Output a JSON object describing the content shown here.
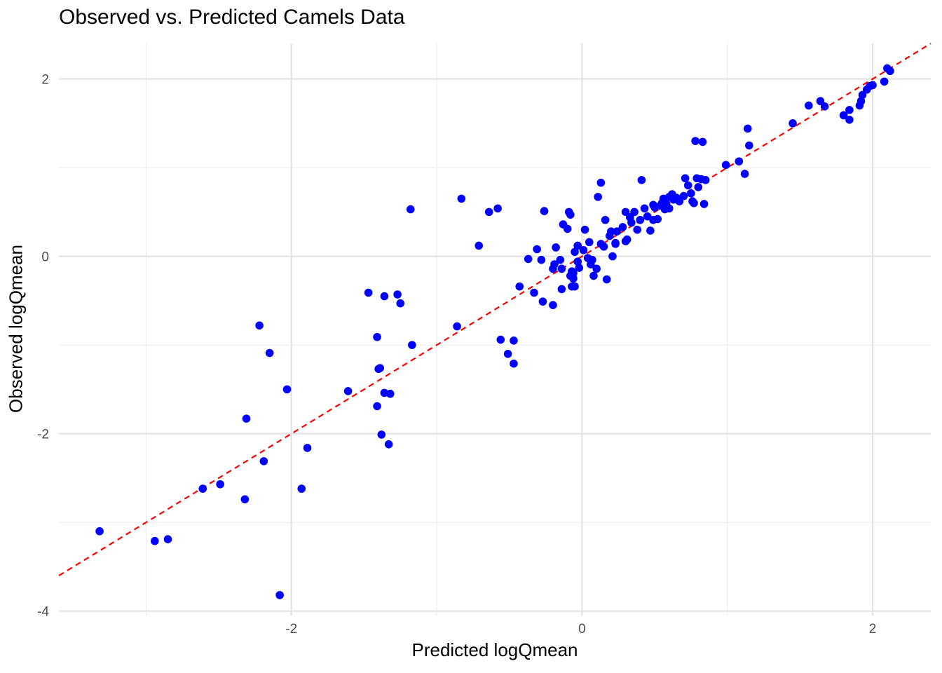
{
  "chart_data": {
    "type": "scatter",
    "title": "Observed vs. Predicted Camels Data",
    "xlabel": "Predicted logQmean",
    "ylabel": "Observed logQmean",
    "xlim": [
      -3.6,
      2.4
    ],
    "ylim": [
      -4.05,
      2.4
    ],
    "x_ticks": [
      -2,
      0,
      2
    ],
    "x_tick_labels": [
      "-2",
      "0",
      "2"
    ],
    "y_ticks": [
      -4,
      -2,
      0,
      2
    ],
    "y_tick_labels": [
      "-4",
      "-2",
      "0",
      "2"
    ],
    "grid": true,
    "legend": "none",
    "point_color": "#0000ff",
    "line_color": "#ff0000",
    "reference_line": {
      "type": "identity",
      "style": "dashed",
      "slope": 1,
      "intercept": 0
    },
    "series": [
      {
        "x": [
          -3.32,
          -2.94,
          -2.85,
          -2.61,
          -2.49,
          -2.31,
          -2.32,
          -2.22,
          -2.19,
          -2.15,
          -2.08,
          -2.03,
          -1.93,
          -1.89,
          -1.61,
          -1.47,
          -1.41,
          -1.4,
          -1.39,
          -1.41,
          -1.38,
          -1.36,
          -1.33,
          -1.36,
          -1.32,
          -1.27,
          -1.25,
          -1.18,
          -1.17,
          -0.86,
          -0.83,
          -0.71,
          -0.64,
          -0.58,
          -0.56,
          -0.51,
          -0.47,
          -0.47,
          -0.43,
          -0.37,
          -0.33,
          -0.31,
          -0.28,
          -0.26,
          -0.27,
          -0.2,
          -0.19,
          -0.2,
          -0.18,
          -0.15,
          -0.14,
          -0.13,
          -0.14,
          -0.1,
          -0.09,
          -0.07,
          -0.08,
          -0.07,
          -0.08,
          -0.06,
          -0.06,
          -0.05,
          -0.05,
          -0.03,
          -0.02,
          -0.03,
          0.01,
          0.02,
          0.04,
          0.05,
          0.06,
          0.07,
          0.08,
          0.1,
          0.11,
          0.13,
          0.13,
          0.15,
          0.16,
          0.17,
          0.19,
          0.2,
          0.21,
          0.23,
          0.23,
          0.24,
          0.28,
          0.3,
          0.3,
          0.31,
          0.33,
          0.34,
          0.36,
          0.38,
          0.4,
          0.41,
          0.43,
          0.45,
          0.47,
          0.49,
          0.49,
          0.5,
          0.52,
          0.54,
          0.55,
          0.56,
          0.57,
          0.58,
          0.6,
          0.6,
          0.62,
          0.63,
          0.65,
          0.67,
          0.7,
          0.71,
          0.73,
          0.75,
          0.76,
          0.77,
          0.78,
          0.79,
          0.8,
          0.82,
          0.84,
          0.85,
          0.83,
          0.99,
          1.08,
          1.12,
          1.14,
          1.15,
          1.45,
          1.56,
          1.64,
          1.67,
          1.8,
          1.84,
          1.84,
          1.91,
          1.92,
          1.93,
          1.96,
          1.98,
          2.0,
          2.08,
          2.1,
          2.12
        ],
        "y": [
          -3.1,
          -3.21,
          -3.19,
          -2.62,
          -2.57,
          -1.83,
          -2.74,
          -0.78,
          -2.31,
          -1.09,
          -3.82,
          -1.5,
          -2.62,
          -2.16,
          -1.52,
          -0.41,
          -1.69,
          -1.27,
          -1.26,
          -0.91,
          -2.01,
          -1.54,
          -2.12,
          -0.45,
          -1.55,
          -0.43,
          -0.53,
          0.53,
          -1.0,
          -0.79,
          0.65,
          0.12,
          0.5,
          0.54,
          -0.94,
          -1.1,
          -0.95,
          -1.21,
          -0.34,
          -0.03,
          -0.41,
          0.08,
          -0.04,
          0.51,
          -0.51,
          -0.55,
          -0.09,
          -0.14,
          0.1,
          -0.04,
          -0.37,
          0.36,
          -0.14,
          0.31,
          0.5,
          -0.34,
          0.47,
          -0.17,
          -0.22,
          -0.25,
          -0.19,
          0.05,
          -0.34,
          0.12,
          -0.13,
          -0.06,
          0.07,
          0.3,
          -0.02,
          0.16,
          -0.09,
          -0.04,
          -0.22,
          -0.14,
          0.67,
          0.14,
          0.83,
          0.11,
          0.41,
          -0.26,
          0.23,
          0.28,
          0.0,
          0.15,
          0.14,
          0.28,
          0.33,
          0.5,
          0.17,
          0.19,
          0.44,
          0.38,
          0.5,
          0.3,
          0.41,
          0.86,
          0.54,
          0.45,
          0.29,
          0.58,
          0.41,
          0.55,
          0.42,
          0.57,
          0.6,
          0.65,
          0.53,
          0.59,
          0.54,
          0.67,
          0.7,
          0.64,
          0.66,
          0.62,
          0.68,
          0.88,
          0.8,
          0.71,
          0.62,
          0.6,
          1.3,
          0.88,
          0.78,
          0.87,
          0.59,
          0.86,
          1.29,
          1.03,
          1.07,
          0.93,
          1.44,
          1.25,
          1.5,
          1.7,
          1.75,
          1.69,
          1.59,
          1.54,
          1.65,
          1.7,
          1.75,
          1.82,
          1.88,
          1.92,
          1.93,
          1.97,
          2.12,
          2.09
        ]
      }
    ]
  }
}
